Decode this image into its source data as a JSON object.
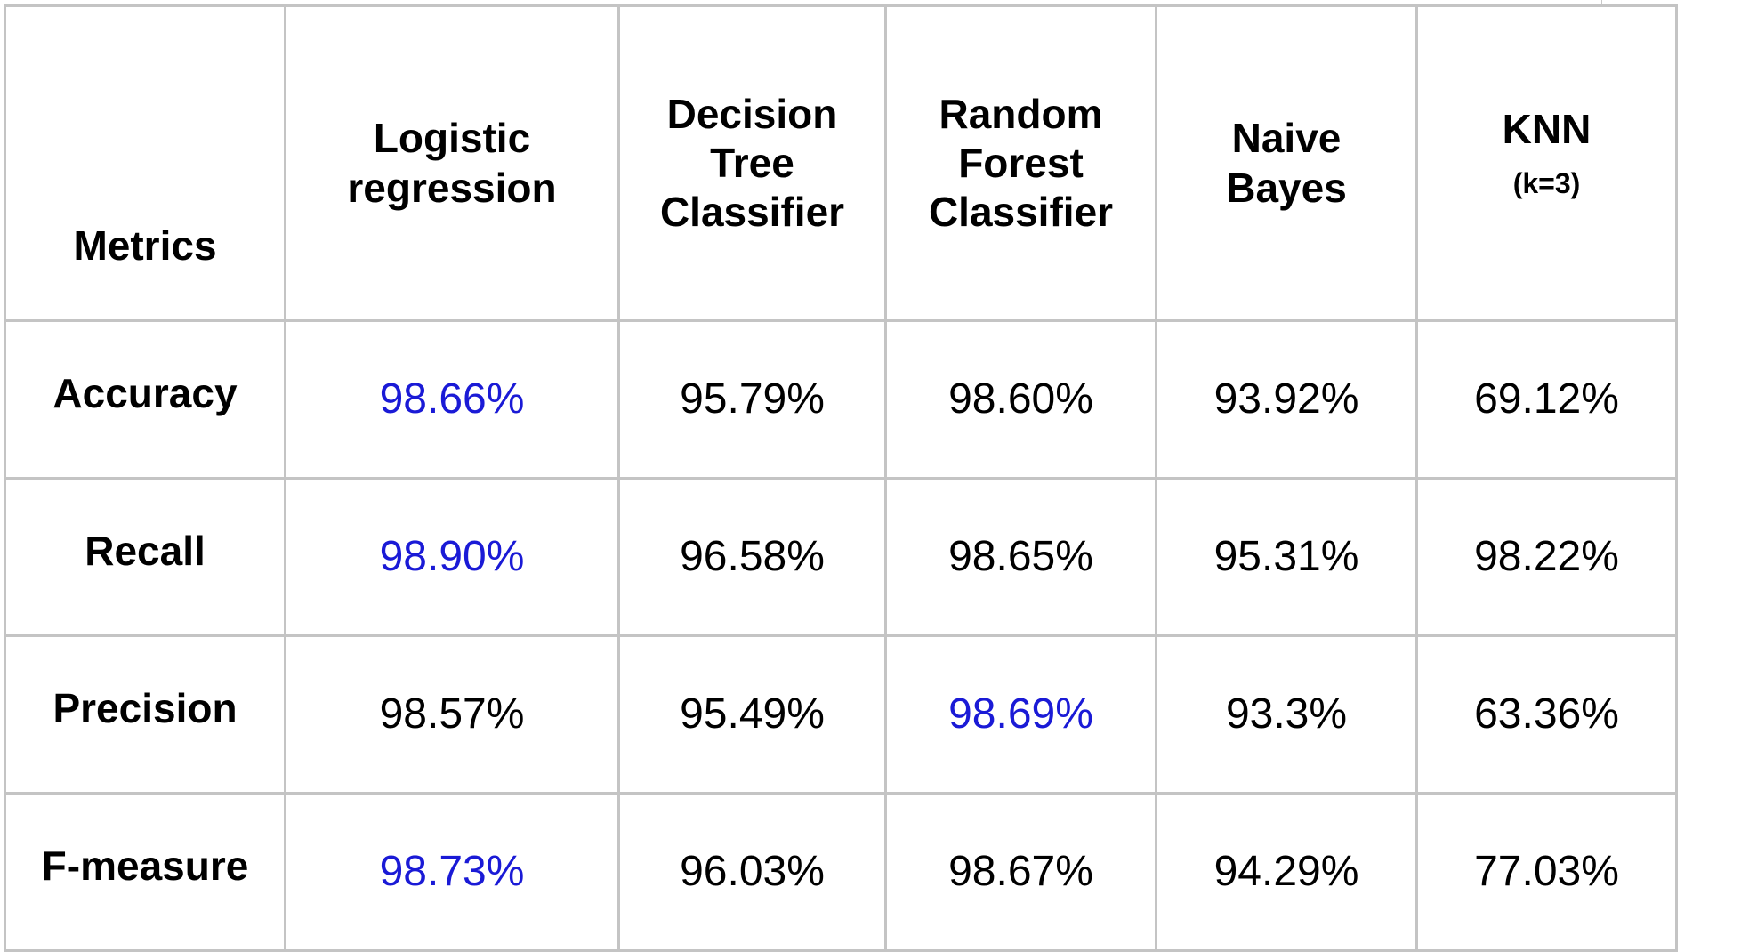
{
  "table": {
    "headers": [
      "Metrics",
      "Logistic regression",
      "Decision Tree Classifier",
      "Random Forest Classifier",
      "Naive Bayes",
      "KNN"
    ],
    "knn_subheader": "(k=3)",
    "highlight_color": "#1a1ad6",
    "rows": [
      {
        "metric": "Accuracy",
        "values": [
          "98.66%",
          "95.79%",
          "98.60%",
          "93.92%",
          "69.12%"
        ],
        "highlighted": [
          true,
          false,
          false,
          false,
          false
        ]
      },
      {
        "metric": "Recall",
        "values": [
          "98.90%",
          "96.58%",
          "98.65%",
          "95.31%",
          "98.22%"
        ],
        "highlighted": [
          true,
          false,
          false,
          false,
          false
        ]
      },
      {
        "metric": "Precision",
        "values": [
          "98.57%",
          "95.49%",
          "98.69%",
          "93.3%",
          "63.36%"
        ],
        "highlighted": [
          false,
          false,
          true,
          false,
          false
        ]
      },
      {
        "metric": "F-measure",
        "values": [
          "98.73%",
          "96.03%",
          "98.67%",
          "94.29%",
          "77.03%"
        ],
        "highlighted": [
          true,
          false,
          false,
          false,
          false
        ]
      }
    ]
  }
}
